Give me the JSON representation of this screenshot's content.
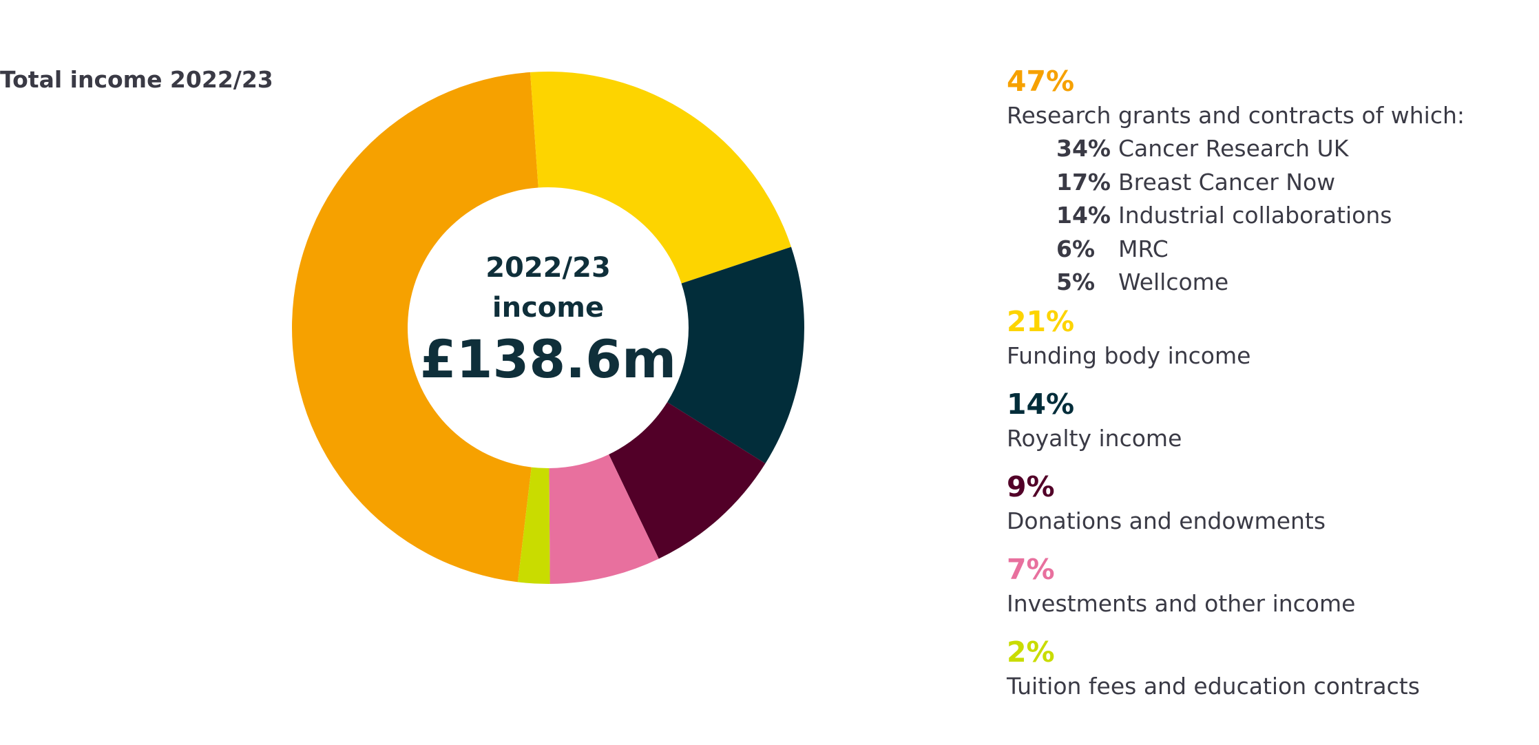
{
  "chart_data": {
    "type": "pie",
    "title": "Total income 2022/23",
    "center": {
      "line1": "2022/23",
      "line2": "income",
      "value": "£138.6m"
    },
    "slices": [
      {
        "key": "research",
        "value": 47,
        "pct_label": "47%",
        "label": "Research grants and contracts of which:",
        "color": "#F6A100"
      },
      {
        "key": "funding",
        "value": 21,
        "pct_label": "21%",
        "label": "Funding body income",
        "color": "#FDD400"
      },
      {
        "key": "royalty",
        "value": 14,
        "pct_label": "14%",
        "label": "Royalty income",
        "color": "#022D3A"
      },
      {
        "key": "donations",
        "value": 9,
        "pct_label": "9%",
        "label": "Donations and endowments",
        "color": "#520028"
      },
      {
        "key": "investments",
        "value": 7,
        "pct_label": "7%",
        "label": "Investments and other income",
        "color": "#E8709E"
      },
      {
        "key": "tuition",
        "value": 2,
        "pct_label": "2%",
        "label": "Tuition fees and education contracts",
        "color": "#C9DC00"
      }
    ],
    "research_breakdown": [
      {
        "pct_label": "34%",
        "value": 34,
        "label": "Cancer Research UK"
      },
      {
        "pct_label": "17%",
        "value": 17,
        "label": "Breast Cancer Now"
      },
      {
        "pct_label": "14%",
        "value": 14,
        "label": "Industrial collaborations"
      },
      {
        "pct_label": "6%",
        "value": 6,
        "label": "MRC"
      },
      {
        "pct_label": "5%",
        "value": 5,
        "label": "Wellcome"
      }
    ]
  }
}
